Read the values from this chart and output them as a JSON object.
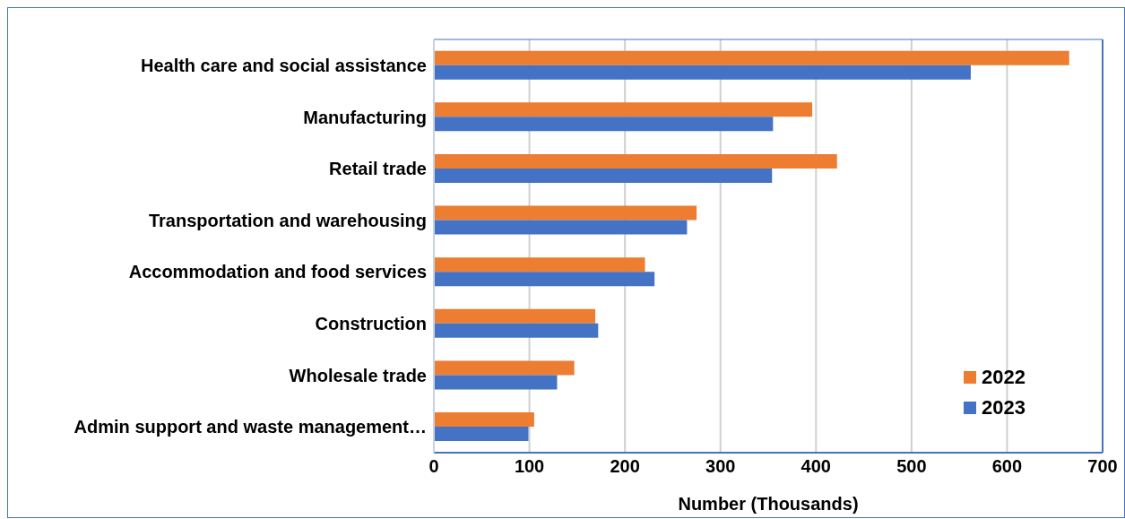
{
  "chart_data": {
    "type": "bar",
    "orientation": "horizontal",
    "xlabel": "Number (Thousands)",
    "categories": [
      "Health care and social assistance",
      "Manufacturing",
      "Retail trade",
      "Transportation and warehousing",
      "Accommodation and food services",
      "Construction",
      "Wholesale trade",
      "Admin support and waste management…"
    ],
    "series": [
      {
        "name": "2022",
        "color": "#ed7d31",
        "values": [
          665,
          396,
          422,
          275,
          221,
          169,
          147,
          105
        ]
      },
      {
        "name": "2023",
        "color": "#4472c4",
        "values": [
          562,
          355,
          354,
          265,
          231,
          172,
          129,
          99
        ]
      }
    ],
    "xlim": [
      0,
      700
    ],
    "xticks": [
      0,
      100,
      200,
      300,
      400,
      500,
      600,
      700
    ],
    "grid": "x",
    "legend": "bottom right"
  }
}
